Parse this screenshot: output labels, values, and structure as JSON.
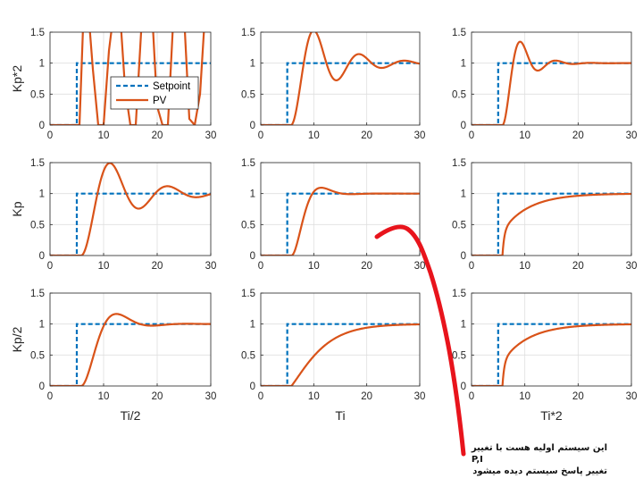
{
  "chart_data": {
    "type": "line",
    "layout": "3x3 grid of step-response subplots",
    "row_labels": [
      "Kp*2",
      "Kp",
      "Kp/2"
    ],
    "col_labels": [
      "Ti/2",
      "Ti",
      "Ti*2"
    ],
    "xlim": [
      0,
      30
    ],
    "ylim": [
      0,
      1.5
    ],
    "xticks": [
      0,
      10,
      20,
      30
    ],
    "yticks": [
      0,
      0.5,
      1,
      1.5
    ],
    "grid": true,
    "legend": {
      "entries": [
        "Setpoint",
        "PV"
      ],
      "position": "inside top-left subplot, middle-right"
    },
    "series": [
      {
        "name": "Setpoint",
        "color": "#0072BD",
        "style": "dashed",
        "x": [
          0,
          5,
          5,
          30
        ],
        "y": [
          0,
          0,
          1,
          1
        ]
      },
      {
        "name": "PV",
        "color": "#D95319",
        "style": "solid"
      }
    ],
    "pv_curves": [
      {
        "row": "Kp*2",
        "col": "Ti/2",
        "behavior": "unstable oscillation",
        "dead_time": 0.5,
        "x": [
          0,
          5.5,
          6.3,
          7.1,
          8.0,
          9.0,
          10.0,
          11.0,
          12.0,
          13.0,
          14.0,
          15.0,
          16.0,
          17.0,
          18.0,
          19.0,
          20.0,
          21.0,
          22.0,
          23.0,
          24.0,
          25.0,
          26.0,
          27.0,
          28.0,
          29.0,
          30.0
        ],
        "y": [
          0,
          0,
          1.9,
          1.9,
          0.9,
          0.0,
          0.0,
          1.2,
          1.9,
          1.9,
          0.6,
          0.0,
          0.0,
          1.5,
          1.9,
          1.9,
          0.3,
          0.0,
          0.0,
          1.7,
          1.9,
          1.8,
          0.1,
          0.0,
          0.5,
          1.9,
          1.9
        ]
      },
      {
        "row": "Kp*2",
        "col": "Ti",
        "peak": 1.44,
        "zeta": 0.2,
        "omega": 0.75,
        "dead_time": 0.7
      },
      {
        "row": "Kp*2",
        "col": "Ti*2",
        "peak": 1.05,
        "zeta": 0.32,
        "omega": 1.0,
        "dead_time": 0.8
      },
      {
        "row": "Kp",
        "col": "Ti/2",
        "peak": 1.5,
        "zeta": 0.22,
        "omega": 0.6,
        "dead_time": 0.8
      },
      {
        "row": "Kp",
        "col": "Ti",
        "peak": 1.03,
        "zeta": 0.6,
        "omega": 0.7,
        "dead_time": 0.8
      },
      {
        "row": "Kp",
        "col": "Ti*2",
        "behavior": "overdamped",
        "dead_time": 0.8
      },
      {
        "row": "Kp/2",
        "col": "Ti/2",
        "peak": 1.15,
        "zeta": 0.5,
        "omega": 0.55,
        "dead_time": 0.8
      },
      {
        "row": "Kp/2",
        "col": "Ti",
        "behavior": "overdamped",
        "time_constant": 3.5,
        "dead_time": 0.8
      },
      {
        "row": "Kp/2",
        "col": "Ti*2",
        "behavior": "overdamped",
        "dead_time": 0.8
      }
    ]
  },
  "annotation": {
    "color": "#E8141C",
    "lines": [
      "این سیستم اولیه هست  با تغییر",
      "P,I",
      "تغییر پاسخ سیستم دیده میشود"
    ]
  },
  "colors": {
    "axes": "#262626",
    "grid": "#dfdfdf",
    "setpoint": "#0072BD",
    "pv": "#D95319"
  }
}
